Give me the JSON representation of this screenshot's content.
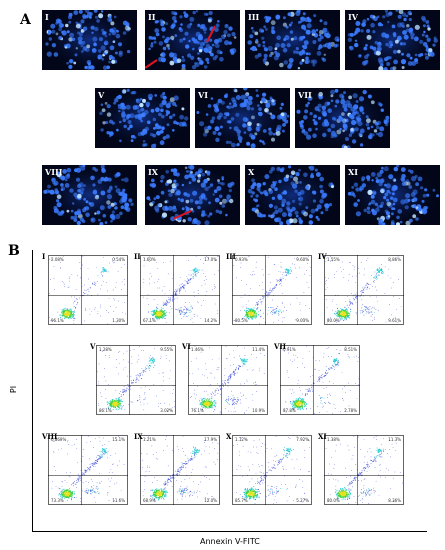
{
  "panel_a": {
    "label": "A",
    "images": [
      {
        "label": "I",
        "arrows": 0
      },
      {
        "label": "II",
        "arrows": 2
      },
      {
        "label": "III",
        "arrows": 0
      },
      {
        "label": "IV",
        "arrows": 0
      },
      {
        "label": "V",
        "arrows": 0
      },
      {
        "label": "VI",
        "arrows": 0
      },
      {
        "label": "VII",
        "arrows": 0
      },
      {
        "label": "VIII",
        "arrows": 0
      },
      {
        "label": "IX",
        "arrows": 1
      },
      {
        "label": "X",
        "arrows": 0
      },
      {
        "label": "XI",
        "arrows": 0
      }
    ],
    "colors": {
      "background": "#020618",
      "nucleus": "#3a7bff",
      "bright": "#bfe3ff",
      "arrow": "#e0141e"
    }
  },
  "panel_b": {
    "label": "B",
    "ylabel": "PI",
    "xlabel": "Annexin V-FITC",
    "plots": [
      {
        "label": "I",
        "q1": "2.08%",
        "q2": "0.54%",
        "q3": "96.1%",
        "q4": "1.30%",
        "late": 0.05,
        "early": 0.02
      },
      {
        "label": "II",
        "q1": "1.60%",
        "q2": "17.0%",
        "q3": "67.1%",
        "q4": "14.2%",
        "late": 0.4,
        "early": 0.3
      },
      {
        "label": "III",
        "q1": "0.93%",
        "q2": "9.60%",
        "q3": "80.5%",
        "q4": "9.03%",
        "late": 0.25,
        "early": 0.2
      },
      {
        "label": "IV",
        "q1": "1.55%",
        "q2": "8.86%",
        "q3": "80.0%",
        "q4": "9.61%",
        "late": 0.25,
        "early": 0.2
      },
      {
        "label": "V",
        "q1": "1.28%",
        "q2": "9.55%",
        "q3": "86.1%",
        "q4": "3.02%",
        "late": 0.25,
        "early": 0.06
      },
      {
        "label": "VI",
        "q1": "1.46%",
        "q2": "11.4%",
        "q3": "76.1%",
        "q4": "10.9%",
        "late": 0.28,
        "early": 0.22
      },
      {
        "label": "VII",
        "q1": "0.91%",
        "q2": "8.51%",
        "q3": "87.8%",
        "q4": "2.78%",
        "late": 0.22,
        "early": 0.06
      },
      {
        "label": "VIII",
        "q1": "0.869%",
        "q2": "15.1%",
        "q3": "73.3%",
        "q4": "11.6%",
        "late": 0.35,
        "early": 0.24
      },
      {
        "label": "IX",
        "q1": "1.21%",
        "q2": "17.9%",
        "q3": "68.9%",
        "q4": "12.0%",
        "late": 0.4,
        "early": 0.25
      },
      {
        "label": "X",
        "q1": "1.12%",
        "q2": "7.92%",
        "q3": "85.7%",
        "q4": "5.27%",
        "late": 0.22,
        "early": 0.12
      },
      {
        "label": "XI",
        "q1": "1.38%",
        "q2": "11.3%",
        "q3": "80.0%",
        "q4": "8.36%",
        "late": 0.28,
        "early": 0.18
      }
    ],
    "colors": {
      "low": "#2b3bd6",
      "mid": "#18c8d0",
      "high": "#3fd23a",
      "peak": "#e8e020",
      "gate": "#000000"
    }
  }
}
